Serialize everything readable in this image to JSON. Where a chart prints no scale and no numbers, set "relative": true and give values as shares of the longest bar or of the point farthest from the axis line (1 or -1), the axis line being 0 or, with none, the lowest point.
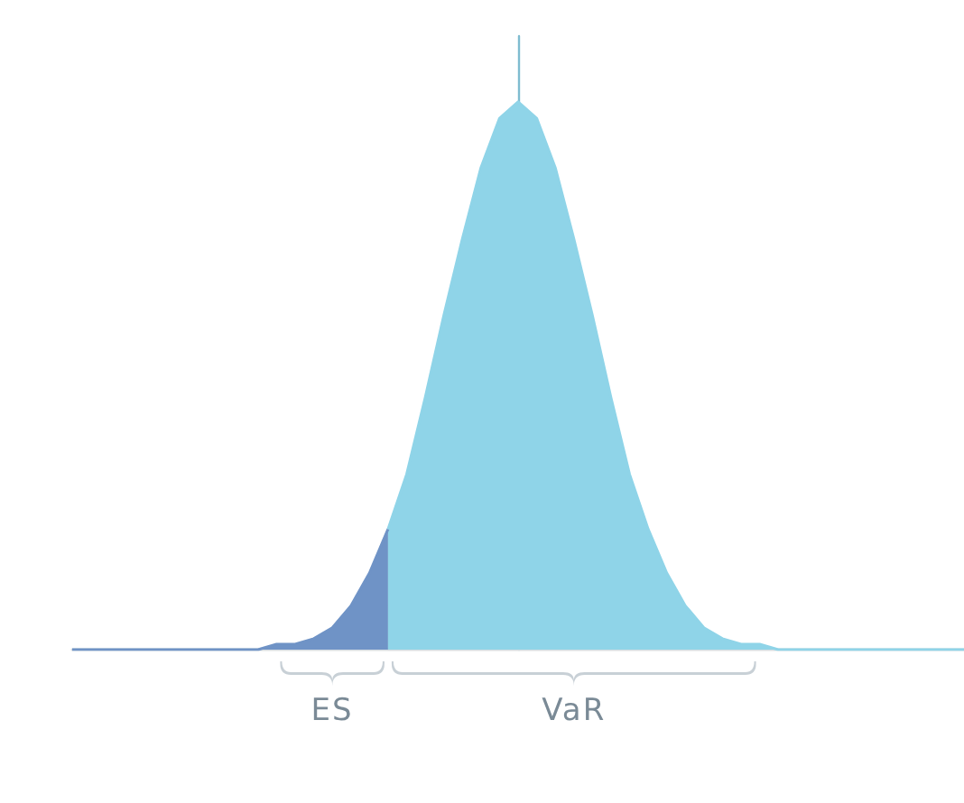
{
  "chart_data": {
    "type": "area",
    "relative": true,
    "tick_labels": false,
    "marker": "none",
    "categories": [
      null,
      null,
      null,
      null,
      null,
      null,
      null,
      null,
      null,
      null,
      null,
      null,
      null,
      null,
      null,
      null,
      null,
      null,
      null,
      null,
      null,
      null,
      null,
      null,
      null,
      null,
      null,
      null,
      null,
      null,
      null,
      null,
      null,
      null,
      null,
      null,
      null,
      null,
      null,
      null,
      null,
      null,
      null,
      null,
      null,
      null,
      null,
      null,
      null
    ],
    "series": [
      {
        "color": "#6f93c6",
        "values": [
          0,
          0,
          0,
          0,
          0,
          0,
          0,
          0,
          0,
          0,
          0,
          0.01,
          0.01,
          0.02,
          0.04,
          0.08,
          0.14,
          0.22,
          null,
          null,
          null,
          null,
          null,
          null,
          null,
          null,
          null,
          null,
          null,
          null,
          null,
          null,
          null,
          null,
          null,
          null,
          null,
          null,
          null,
          null,
          null,
          null,
          null,
          null,
          null,
          null,
          null,
          null,
          null
        ]
      },
      {
        "color": "#8fd4e8",
        "values": [
          null,
          null,
          null,
          null,
          null,
          null,
          null,
          null,
          null,
          null,
          null,
          null,
          null,
          null,
          null,
          null,
          null,
          0.22,
          0.32,
          0.46,
          0.61,
          0.75,
          0.88,
          0.97,
          1,
          0.97,
          0.88,
          0.75,
          0.61,
          0.46,
          0.32,
          0.22,
          0.14,
          0.08,
          0.04,
          0.02,
          0.01,
          0.01,
          0,
          0,
          0,
          0,
          0,
          0,
          0,
          0,
          0,
          0,
          0
        ]
      }
    ],
    "annotations": [
      "ES",
      "VaR"
    ]
  }
}
